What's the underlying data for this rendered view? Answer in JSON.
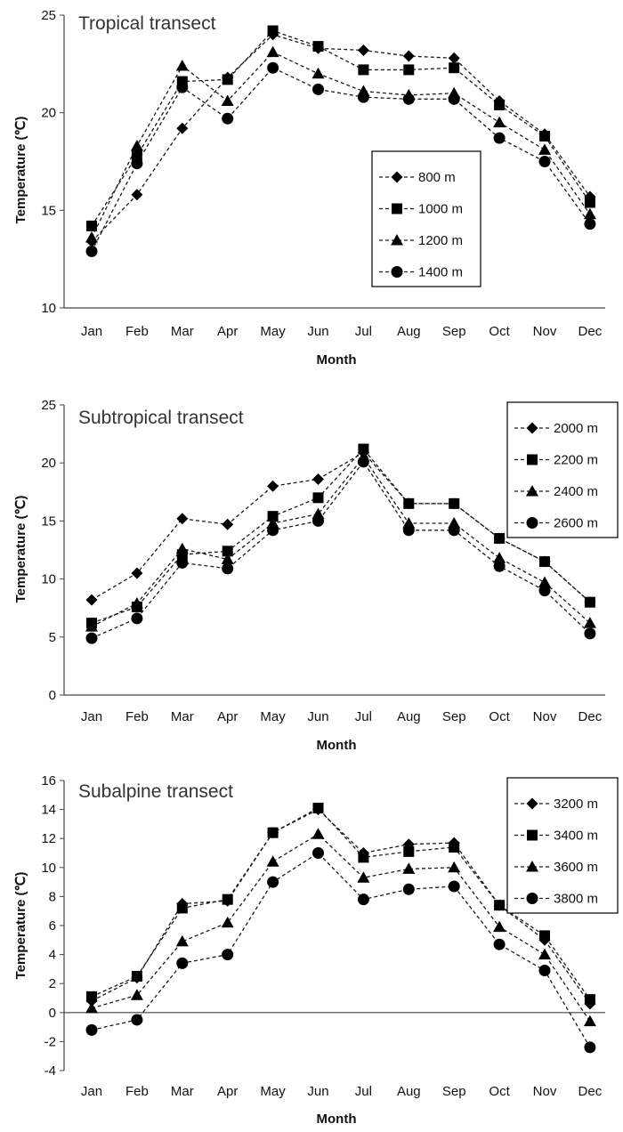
{
  "chart_data": [
    {
      "type": "line",
      "title": "Tropical transect",
      "xlabel": "Month",
      "ylabel": "Temperature (℃)",
      "ylim": [
        10,
        25
      ],
      "ytick_step": 5,
      "categories": [
        "Jan",
        "Feb",
        "Mar",
        "Apr",
        "May",
        "Jun",
        "Jul",
        "Aug",
        "Sep",
        "Oct",
        "Nov",
        "Dec"
      ],
      "legend_position": "right-middle",
      "series": [
        {
          "name": "800 m",
          "marker": "diamond",
          "values": [
            13.4,
            15.8,
            19.2,
            21.8,
            24.0,
            23.3,
            23.2,
            22.9,
            22.8,
            20.6,
            18.9,
            15.7
          ]
        },
        {
          "name": "1000 m",
          "marker": "square",
          "values": [
            14.2,
            17.8,
            21.6,
            21.7,
            24.2,
            23.4,
            22.2,
            22.2,
            22.3,
            20.4,
            18.8,
            15.4
          ]
        },
        {
          "name": "1200 m",
          "marker": "triangle",
          "values": [
            13.6,
            18.3,
            22.4,
            20.6,
            23.1,
            22.0,
            21.1,
            20.9,
            21.0,
            19.5,
            18.1,
            14.8
          ]
        },
        {
          "name": "1400 m",
          "marker": "circle",
          "values": [
            12.9,
            17.4,
            21.3,
            19.7,
            22.3,
            21.2,
            20.8,
            20.7,
            20.7,
            18.7,
            17.5,
            14.3
          ]
        }
      ]
    },
    {
      "type": "line",
      "title": "Subtropical transect",
      "xlabel": "Month",
      "ylabel": "Temperature (℃)",
      "ylim": [
        0,
        25
      ],
      "ytick_step": 5,
      "categories": [
        "Jan",
        "Feb",
        "Mar",
        "Apr",
        "May",
        "Jun",
        "Jul",
        "Aug",
        "Sep",
        "Oct",
        "Nov",
        "Dec"
      ],
      "legend_position": "top-right",
      "series": [
        {
          "name": "2000 m",
          "marker": "diamond",
          "values": [
            8.2,
            10.5,
            15.2,
            14.7,
            18.0,
            18.6,
            20.9,
            16.5,
            16.5,
            13.5,
            11.5,
            8.0
          ]
        },
        {
          "name": "2200 m",
          "marker": "square",
          "values": [
            6.2,
            7.6,
            12.1,
            12.4,
            15.4,
            17.0,
            21.2,
            16.5,
            16.5,
            13.5,
            11.5,
            8.0
          ]
        },
        {
          "name": "2400 m",
          "marker": "triangle",
          "values": [
            5.9,
            7.9,
            12.6,
            11.7,
            14.8,
            15.6,
            20.5,
            14.8,
            14.8,
            11.8,
            9.7,
            6.2
          ]
        },
        {
          "name": "2600 m",
          "marker": "circle",
          "values": [
            4.9,
            6.6,
            11.4,
            10.9,
            14.2,
            15.0,
            20.1,
            14.2,
            14.2,
            11.1,
            9.0,
            5.3
          ]
        }
      ]
    },
    {
      "type": "line",
      "title": "Subalpine transect",
      "xlabel": "Month",
      "ylabel": "Temperature (℃)",
      "ylim": [
        -4,
        16
      ],
      "ytick_step": 2,
      "categories": [
        "Jan",
        "Feb",
        "Mar",
        "Apr",
        "May",
        "Jun",
        "Jul",
        "Aug",
        "Sep",
        "Oct",
        "Nov",
        "Dec"
      ],
      "legend_position": "top-right",
      "series": [
        {
          "name": "3200 m",
          "marker": "diamond",
          "values": [
            0.8,
            2.4,
            7.5,
            7.7,
            12.4,
            14.0,
            11.0,
            11.6,
            11.7,
            7.4,
            5.0,
            0.6
          ]
        },
        {
          "name": "3400 m",
          "marker": "square",
          "values": [
            1.1,
            2.5,
            7.2,
            7.8,
            12.4,
            14.1,
            10.7,
            11.1,
            11.4,
            7.4,
            5.3,
            0.9
          ]
        },
        {
          "name": "3600 m",
          "marker": "triangle",
          "values": [
            0.3,
            1.2,
            4.9,
            6.2,
            10.4,
            12.3,
            9.3,
            9.9,
            10.0,
            5.9,
            4.0,
            -0.6
          ]
        },
        {
          "name": "3800 m",
          "marker": "circle",
          "values": [
            -1.2,
            -0.5,
            3.4,
            4.0,
            9.0,
            11.0,
            7.8,
            8.5,
            8.7,
            4.7,
            2.9,
            -2.4
          ]
        }
      ]
    }
  ]
}
